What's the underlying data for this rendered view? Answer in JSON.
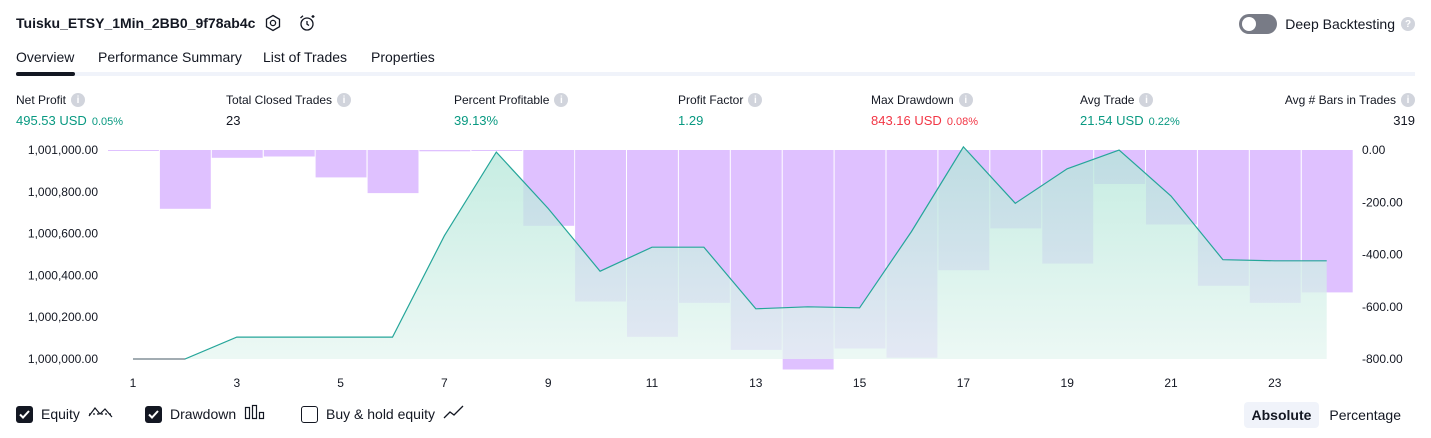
{
  "header": {
    "title": "Tuisku_ETSY_1Min_2BB0_9f78ab4c",
    "settings_icon": "gear-icon",
    "alert_icon": "alarm-add-icon",
    "deep_backtesting_label": "Deep Backtesting",
    "deep_backtesting_enabled": false,
    "help_icon": "question-icon",
    "help_glyph": "?"
  },
  "tabs": [
    {
      "label": "Overview",
      "active": true
    },
    {
      "label": "Performance Summary",
      "active": false
    },
    {
      "label": "List of Trades",
      "active": false
    },
    {
      "label": "Properties",
      "active": false
    }
  ],
  "metrics": [
    {
      "label": "Net Profit",
      "value": "495.53 USD",
      "sub": "0.05%",
      "color": "#089981"
    },
    {
      "label": "Total Closed Trades",
      "value": "23",
      "sub": "",
      "color": "#131722"
    },
    {
      "label": "Percent Profitable",
      "value": "39.13%",
      "sub": "",
      "color": "#089981"
    },
    {
      "label": "Profit Factor",
      "value": "1.29",
      "sub": "",
      "color": "#089981"
    },
    {
      "label": "Max Drawdown",
      "value": "843.16 USD",
      "sub": "0.08%",
      "color": "#f23645"
    },
    {
      "label": "Avg Trade",
      "value": "21.54 USD",
      "sub": "0.22%",
      "color": "#089981"
    },
    {
      "label": "Avg # Bars in Trades",
      "value": "319",
      "sub": "",
      "color": "#131722"
    }
  ],
  "chart_data": {
    "type": "area",
    "x": [
      1,
      2,
      3,
      4,
      5,
      6,
      7,
      8,
      9,
      10,
      11,
      12,
      13,
      14,
      15,
      16,
      17,
      18,
      19,
      20,
      21,
      22,
      23,
      24
    ],
    "xticks": [
      "1",
      "3",
      "5",
      "7",
      "9",
      "11",
      "13",
      "15",
      "17",
      "19",
      "21",
      "23"
    ],
    "series": [
      {
        "axis": "left",
        "values": [
          1000000,
          1000000,
          1000105,
          1000105,
          1000105,
          1000105,
          1000590,
          1000990,
          1000720,
          1000420,
          1000535,
          1000535,
          1000240,
          1000250,
          1000245,
          1000610,
          1001015,
          1000745,
          1000910,
          1001000,
          1000780,
          1000475,
          1000470,
          1000470
        ],
        "color": "#26a69a"
      },
      {
        "axis": "right",
        "type": "bar",
        "values": [
          0,
          -225,
          -30,
          -25,
          -105,
          -165,
          -5,
          0,
          -290,
          -580,
          -715,
          -585,
          -765,
          -840,
          -760,
          -795,
          -460,
          -300,
          -435,
          -130,
          -285,
          -520,
          -585,
          -545
        ],
        "color": "#d1a6ff"
      }
    ],
    "y_left": {
      "min": 1000000,
      "max": 1001000,
      "ticks": [
        "1,000,000.00",
        "1,000,200.00",
        "1,000,400.00",
        "1,000,600.00",
        "1,000,800.00",
        "1,001,000.00"
      ]
    },
    "y_right": {
      "min": -800,
      "max": 0,
      "ticks": [
        "0.00",
        "-200.00",
        "-400.00",
        "-600.00",
        "-800.00"
      ]
    }
  },
  "legend": {
    "items": [
      {
        "label": "Equity",
        "checked": true,
        "icon": "equity-line-icon"
      },
      {
        "label": "Drawdown",
        "checked": true,
        "icon": "drawdown-bars-icon"
      },
      {
        "label": "Buy & hold equity",
        "checked": false,
        "icon": "buy-hold-line-icon"
      }
    ],
    "modes": [
      {
        "label": "Absolute",
        "active": true
      },
      {
        "label": "Percentage",
        "active": false
      }
    ]
  }
}
